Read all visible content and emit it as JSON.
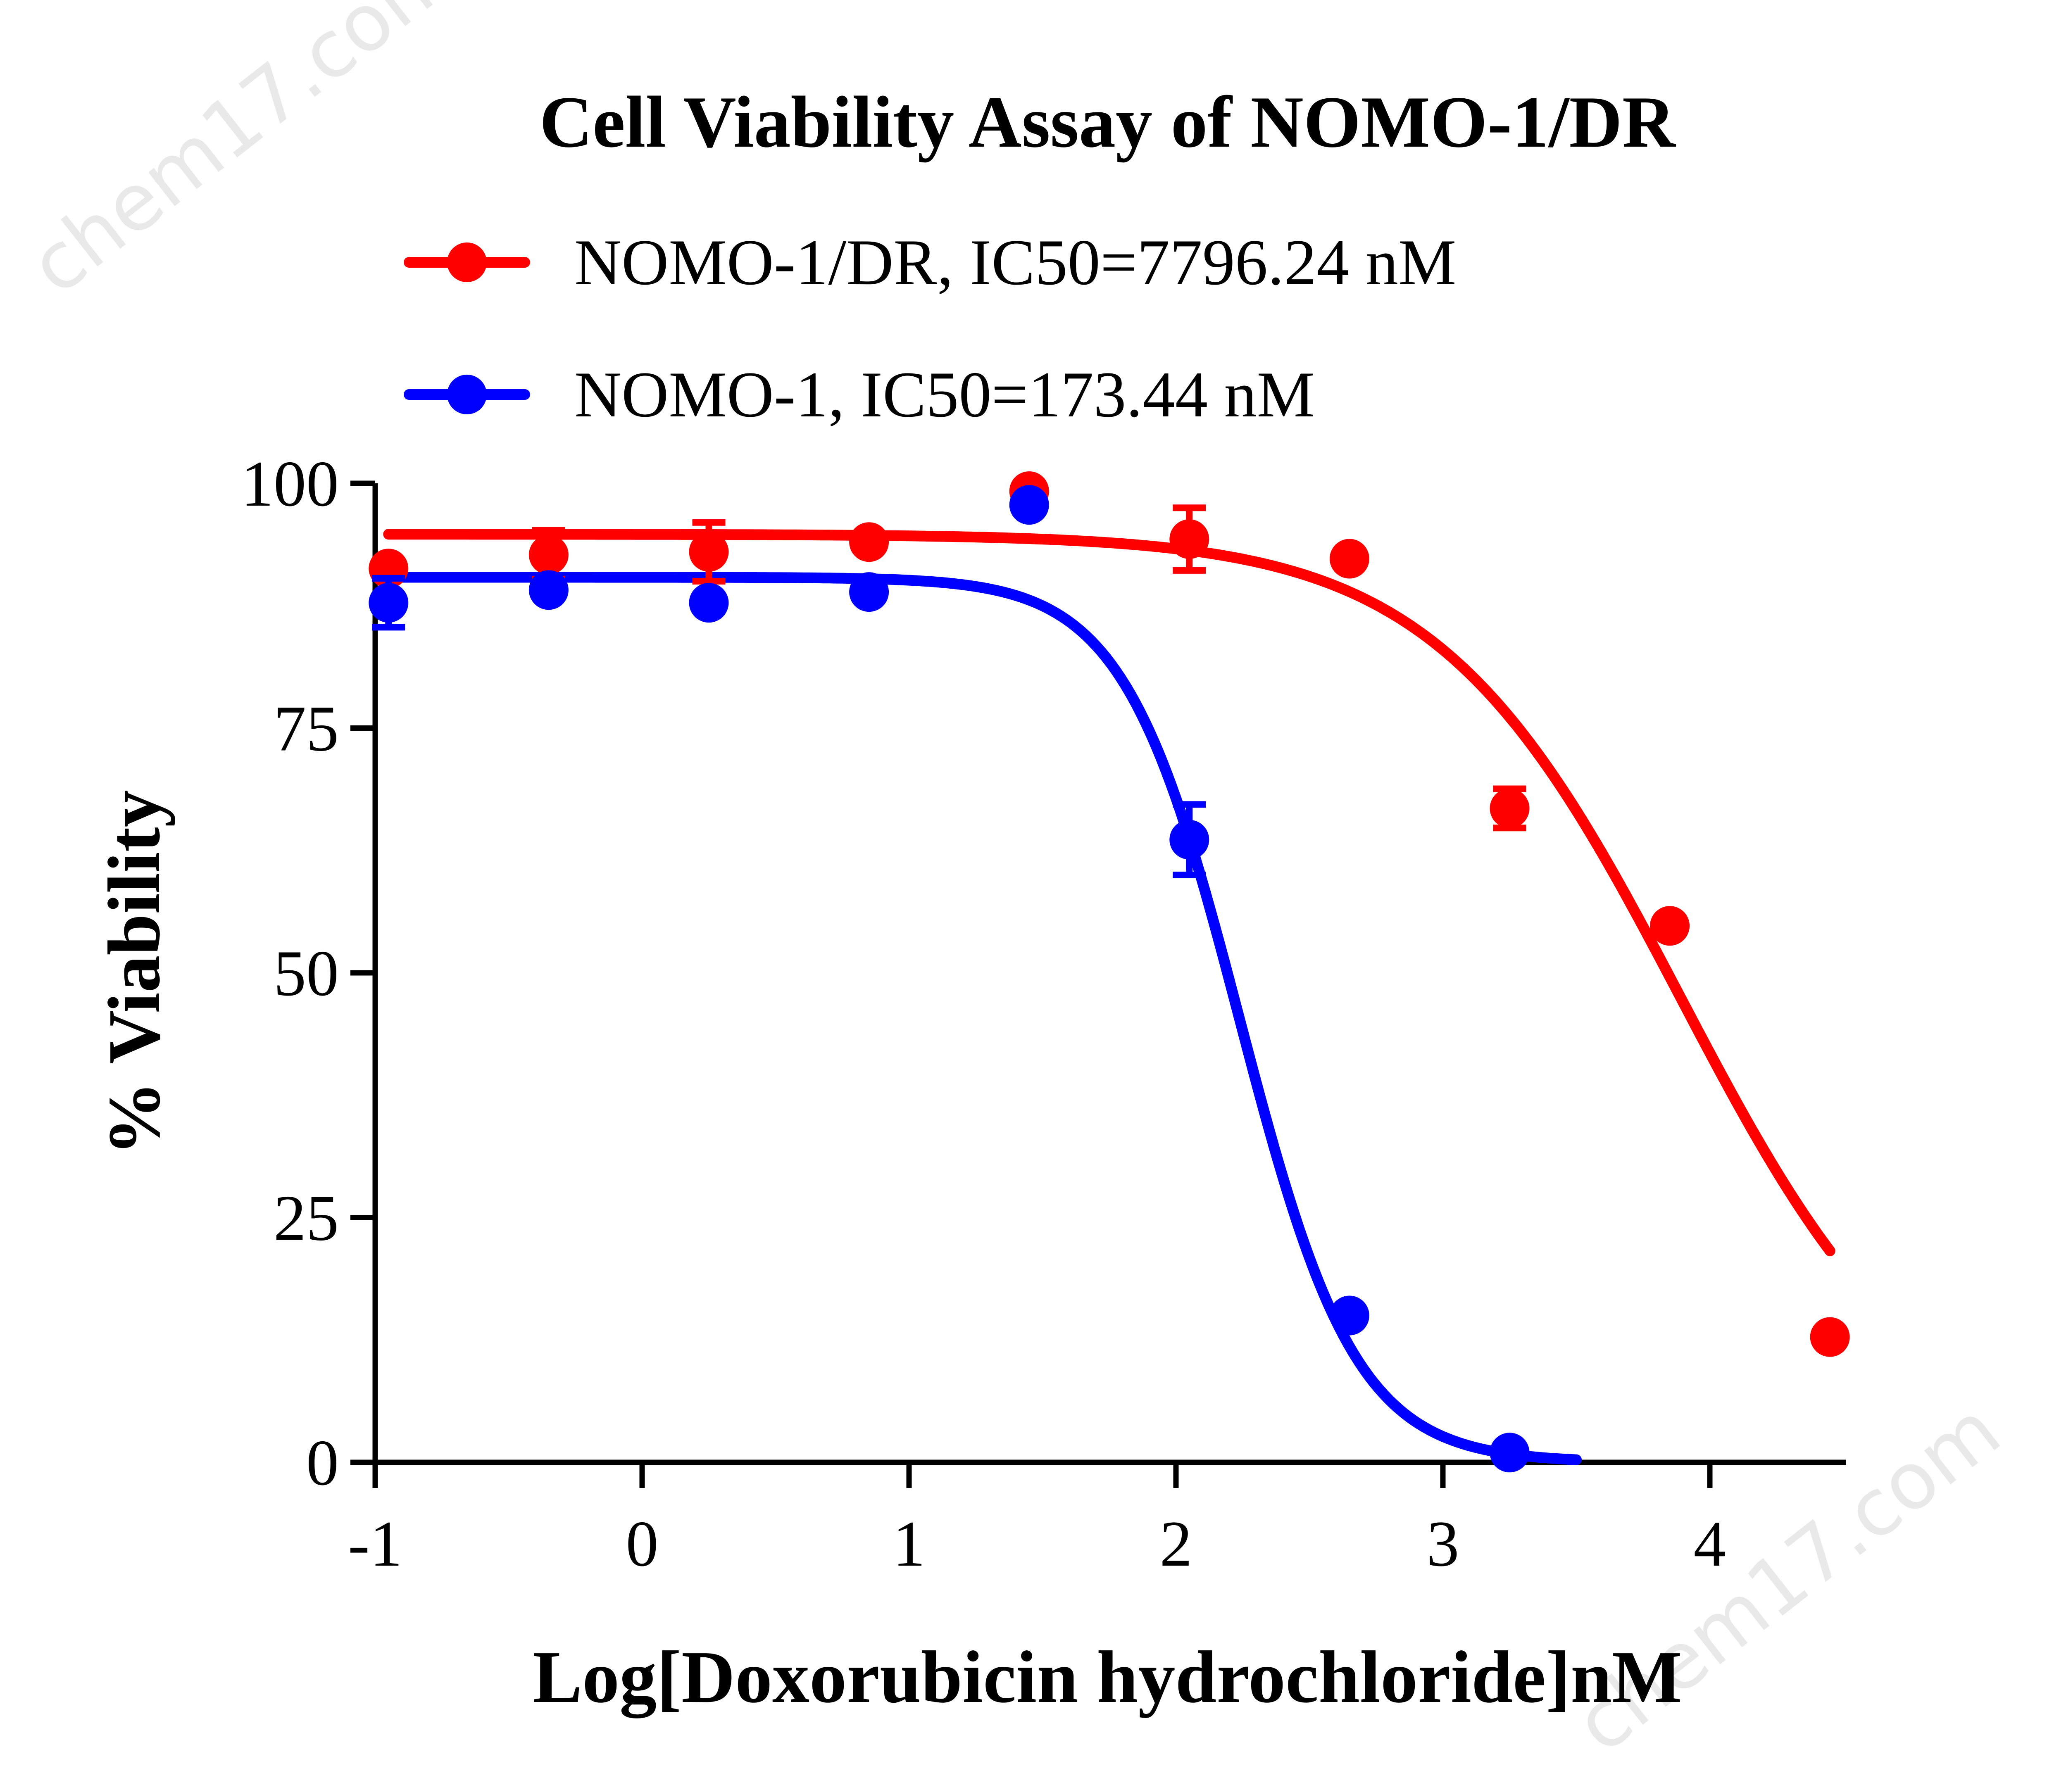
{
  "watermark": "chem17.com",
  "chart_data": {
    "type": "scatter",
    "title": "Cell Viability Assay of NOMO-1/DR",
    "xlabel": "Log[Doxorubicin hydrochloride]nM",
    "ylabel": "% Viability",
    "xlim": [
      -1,
      4.5
    ],
    "ylim": [
      0,
      100
    ],
    "x_ticks": [
      -1,
      0,
      1,
      2,
      3,
      4
    ],
    "x_tick_labels": [
      "-1",
      "0",
      "1",
      "2",
      "3",
      "4"
    ],
    "y_ticks": [
      0,
      25,
      50,
      75,
      100
    ],
    "y_tick_labels": [
      "0",
      "25",
      "50",
      "75",
      "100"
    ],
    "grid": false,
    "legend_position": "top",
    "series": [
      {
        "name": "NOMO-1/DR, IC50=7796.24 nM",
        "color": "#ff0000",
        "marker": "circle",
        "x": [
          -0.95,
          -0.35,
          0.25,
          0.85,
          1.45,
          2.05,
          2.65,
          3.25,
          3.85,
          4.45
        ],
        "y": [
          91.3,
          92.7,
          93.0,
          94.0,
          99.2,
          94.3,
          92.3,
          66.8,
          54.8,
          12.8
        ],
        "error": [
          0.8,
          2.5,
          3.0,
          0.8,
          0.8,
          3.2,
          0.8,
          2.0,
          0.8,
          0.8
        ],
        "fit": {
          "top": 94.8,
          "bottom": 0,
          "log_ic50": 3.892,
          "hill": 0.95,
          "x_range": [
            -0.95,
            4.45
          ]
        }
      },
      {
        "name": "NOMO-1, IC50=173.44 nM",
        "color": "#0000ff",
        "marker": "circle",
        "x": [
          -0.95,
          -0.35,
          0.25,
          0.85,
          1.45,
          2.05,
          2.65,
          3.25
        ],
        "y": [
          87.8,
          89.1,
          87.8,
          88.9,
          97.8,
          63.6,
          15.0,
          1.0
        ],
        "error": [
          2.5,
          0.8,
          0.8,
          0.8,
          0.8,
          3.6,
          0.8,
          0.5
        ],
        "fit": {
          "top": 90.4,
          "bottom": 0,
          "log_ic50": 2.239,
          "hill": 2.0,
          "x_range": [
            -0.95,
            3.5
          ]
        }
      }
    ]
  }
}
